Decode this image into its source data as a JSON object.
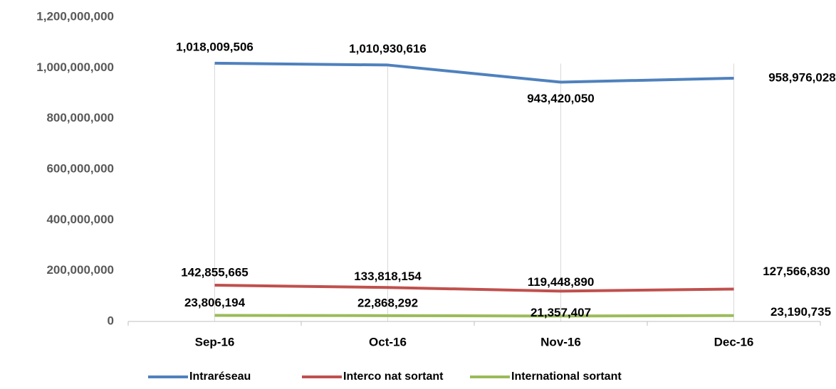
{
  "chart_data": {
    "type": "line",
    "categories": [
      "Sep-16",
      "Oct-16",
      "Nov-16",
      "Dec-16"
    ],
    "series": [
      {
        "name": "Intraréseau",
        "color": "#4f81bd",
        "values": [
          1018009506,
          1010930616,
          943420050,
          958976028
        ],
        "value_labels": [
          "1,018,009,506",
          "1,010,930,616",
          "943,420,050",
          "958,976,028"
        ]
      },
      {
        "name": "Interco nat sortant",
        "color": "#c0504d",
        "values": [
          142855665,
          133818154,
          119448890,
          127566830
        ],
        "value_labels": [
          "142,855,665",
          "133,818,154",
          "119,448,890",
          "127,566,830"
        ]
      },
      {
        "name": "International sortant",
        "color": "#9bbb59",
        "values": [
          23806194,
          22868292,
          21357407,
          23190735
        ],
        "value_labels": [
          "23,806,194",
          "22,868,292",
          "21,357,407",
          "23,190,735"
        ]
      }
    ],
    "ylim": [
      0,
      1200000000
    ],
    "yticks": [
      0,
      {
        "value": 200000000,
        "label": "200,000,000"
      },
      {
        "value": 400000000,
        "label": "400,000,000"
      },
      {
        "value": 600000000,
        "label": "600,000,000"
      },
      {
        "value": 800000000,
        "label": "800,000,000"
      },
      {
        "value": 1000000000,
        "label": "1,000,000,000"
      },
      {
        "value": 1200000000,
        "label": "1,200,000,000"
      }
    ],
    "legend": "bottom"
  }
}
